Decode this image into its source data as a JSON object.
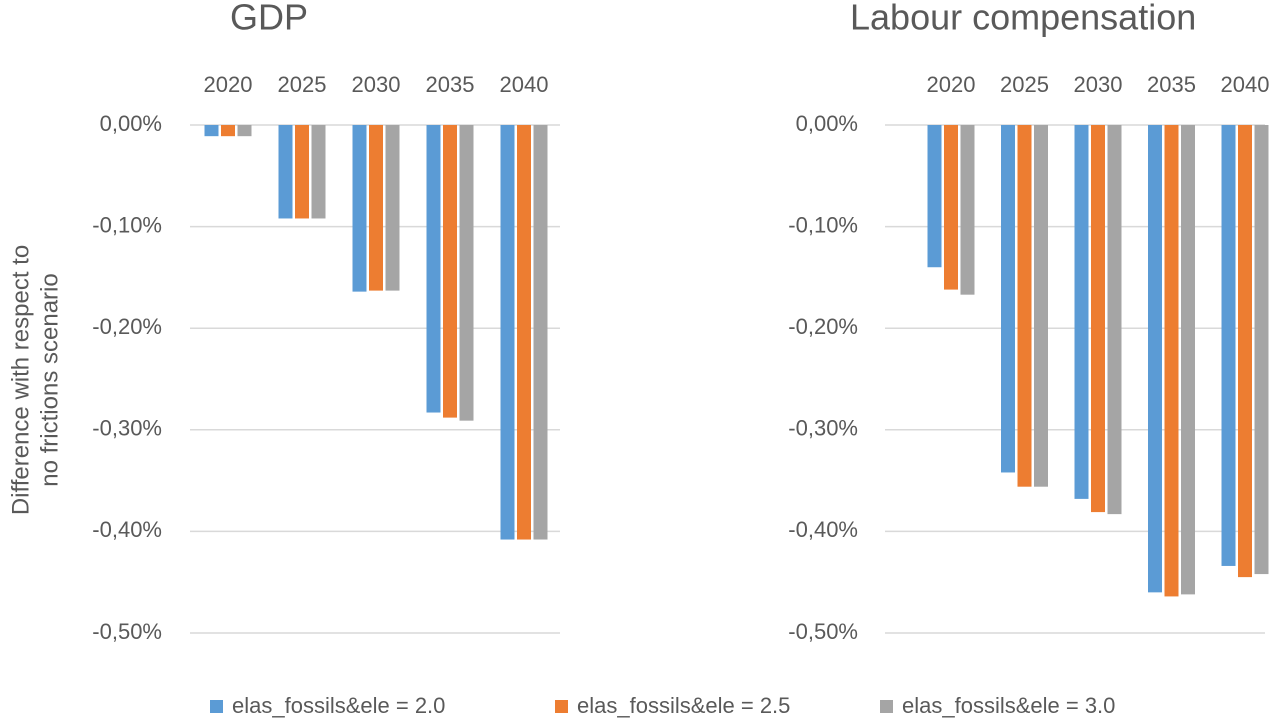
{
  "chart_data": [
    {
      "type": "bar",
      "title": "GDP",
      "ylabel": [
        "Difference with respect to",
        "no frictions scenario"
      ],
      "categories": [
        "2020",
        "2025",
        "2030",
        "2035",
        "2040"
      ],
      "series": [
        {
          "name": "elas_fossils&ele = 2.0",
          "color": "#5b9bd5",
          "values": [
            -0.011,
            -0.092,
            -0.164,
            -0.283,
            -0.408
          ]
        },
        {
          "name": "elas_fossils&ele = 2.5",
          "color": "#ed7d31",
          "values": [
            -0.011,
            -0.092,
            -0.163,
            -0.288,
            -0.408
          ]
        },
        {
          "name": "elas_fossils&ele = 3.0",
          "color": "#a5a5a5",
          "values": [
            -0.011,
            -0.092,
            -0.163,
            -0.291,
            -0.408
          ]
        }
      ],
      "ylim": [
        -0.5,
        0
      ],
      "yticks": [
        {
          "value": 0,
          "label": "0,00%"
        },
        {
          "value": -0.1,
          "label": "-0,10%"
        },
        {
          "value": -0.2,
          "label": "-0,20%"
        },
        {
          "value": -0.3,
          "label": "-0,30%"
        },
        {
          "value": -0.4,
          "label": "-0,40%"
        },
        {
          "value": -0.5,
          "label": "-0,50%"
        }
      ],
      "grid": true
    },
    {
      "type": "bar",
      "title": "Labour compensation",
      "categories": [
        "2020",
        "2025",
        "2030",
        "2035",
        "2040"
      ],
      "series": [
        {
          "values": [
            -0.14,
            -0.342,
            -0.368,
            -0.46,
            -0.434
          ]
        },
        {
          "values": [
            -0.162,
            -0.356,
            -0.381,
            -0.464,
            -0.445
          ]
        },
        {
          "values": [
            -0.167,
            -0.356,
            -0.383,
            -0.462,
            -0.442
          ]
        }
      ],
      "ylim": [
        -0.5,
        0
      ],
      "yticks": [
        {
          "value": 0,
          "label": "0,00%"
        },
        {
          "value": -0.1,
          "label": "-0,10%"
        },
        {
          "value": -0.2,
          "label": "-0,20%"
        },
        {
          "value": -0.3,
          "label": "-0,30%"
        },
        {
          "value": -0.4,
          "label": "-0,40%"
        },
        {
          "value": -0.5,
          "label": "-0,50%"
        }
      ],
      "grid": true
    }
  ]
}
